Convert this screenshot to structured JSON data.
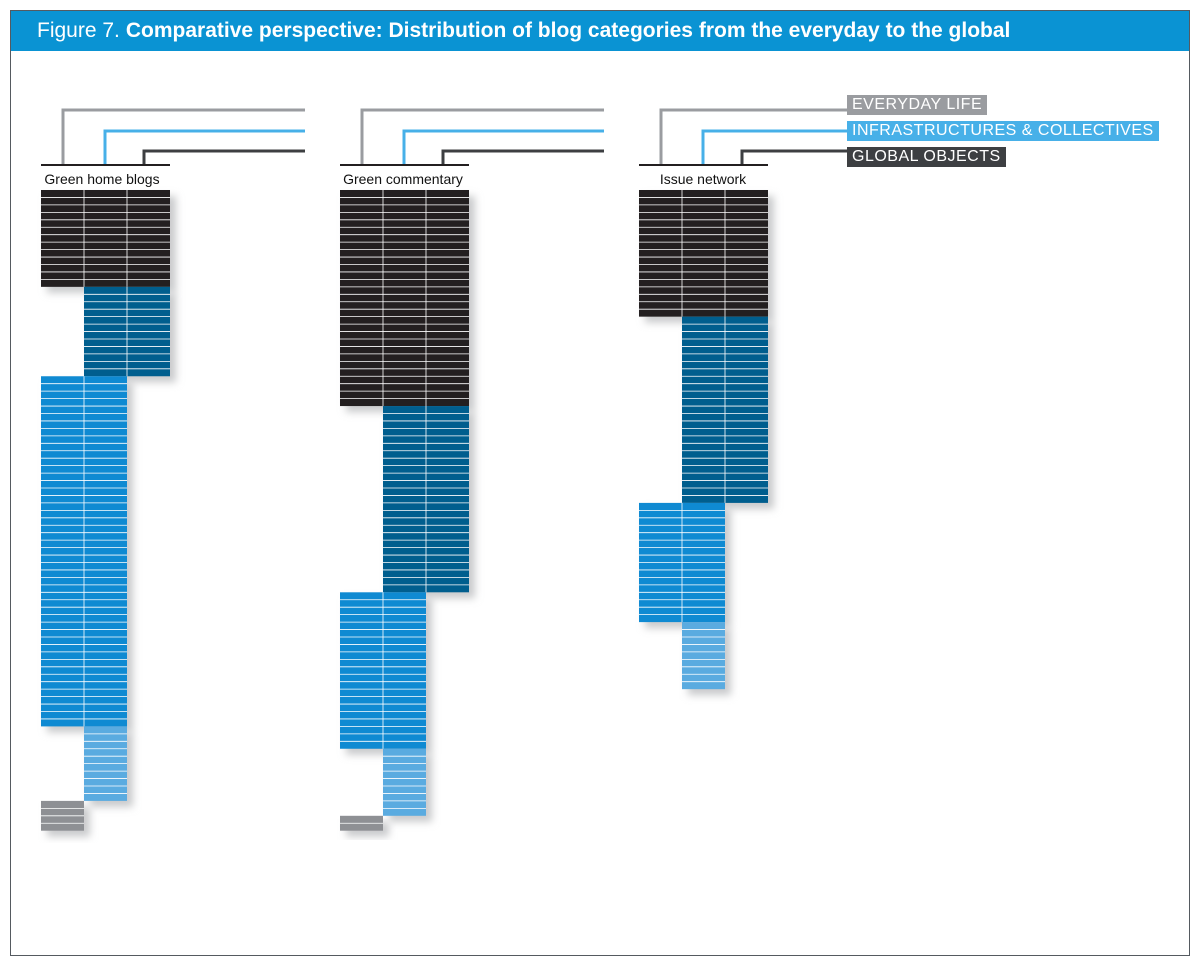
{
  "figure": {
    "prefix": "Figure 7.",
    "title": "Comparative perspective: Distribution of blog categories from the everyday to the global"
  },
  "colors": {
    "title_bar": "#0a93d3",
    "everyday_life": "#9a9ca0",
    "infrastructures": "#47b0e8",
    "global_objects": "#3d3f42",
    "frame": "#555a60",
    "black": "#231f20",
    "dark_blue": "#005e8e",
    "mid_blue": "#0f8ad2",
    "light_blue": "#5aabe0",
    "gray": "#8e9094"
  },
  "legend": [
    {
      "key": "everyday_life",
      "label": "EVERYDAY LIFE",
      "color": "#9a9ca0"
    },
    {
      "key": "infrastructures",
      "label": "INFRASTRUCTURES & COLLECTIVES",
      "color": "#47b0e8"
    },
    {
      "key": "global_objects",
      "label": "GLOBAL OBJECTS",
      "color": "#3d3f42"
    }
  ],
  "chart_data": {
    "type": "bar",
    "title": "Comparative perspective: Distribution of blog categories from the everyday to the global",
    "series_names": [
      "Everyday life",
      "Infrastructures & collectives",
      "Global objects"
    ],
    "groups": [
      {
        "label": "Green home blogs",
        "blocks": [
          {
            "color": "#231f20",
            "columns": [
              0,
              1,
              2
            ],
            "rows": 13
          },
          {
            "color": "#005e8e",
            "columns": [
              1,
              2
            ],
            "rows": 12
          },
          {
            "color": "#0f8ad2",
            "columns": [
              0,
              1
            ],
            "rows": 47
          },
          {
            "color": "#5aabe0",
            "columns": [
              1
            ],
            "rows": 10
          },
          {
            "color": "#8e9094",
            "columns": [
              0
            ],
            "rows": 4
          }
        ]
      },
      {
        "label": "Green commentary",
        "blocks": [
          {
            "color": "#231f20",
            "columns": [
              0,
              1,
              2
            ],
            "rows": 29
          },
          {
            "color": "#005e8e",
            "columns": [
              1,
              2
            ],
            "rows": 25
          },
          {
            "color": "#0f8ad2",
            "columns": [
              0,
              1
            ],
            "rows": 21
          },
          {
            "color": "#5aabe0",
            "columns": [
              1
            ],
            "rows": 9
          },
          {
            "color": "#8e9094",
            "columns": [
              0
            ],
            "rows": 2
          }
        ]
      },
      {
        "label": "Issue network",
        "blocks": [
          {
            "color": "#231f20",
            "columns": [
              0,
              1,
              2
            ],
            "rows": 17
          },
          {
            "color": "#005e8e",
            "columns": [
              1,
              2
            ],
            "rows": 25
          },
          {
            "color": "#0f8ad2",
            "columns": [
              0,
              1
            ],
            "rows": 16
          },
          {
            "color": "#5aabe0",
            "columns": [
              1
            ],
            "rows": 9
          }
        ]
      }
    ]
  }
}
